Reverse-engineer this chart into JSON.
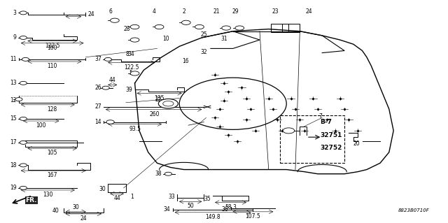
{
  "bg_color": "#ffffff",
  "fig_width": 6.4,
  "fig_height": 3.19,
  "dpi": 100,
  "code": "8823B0710F"
}
